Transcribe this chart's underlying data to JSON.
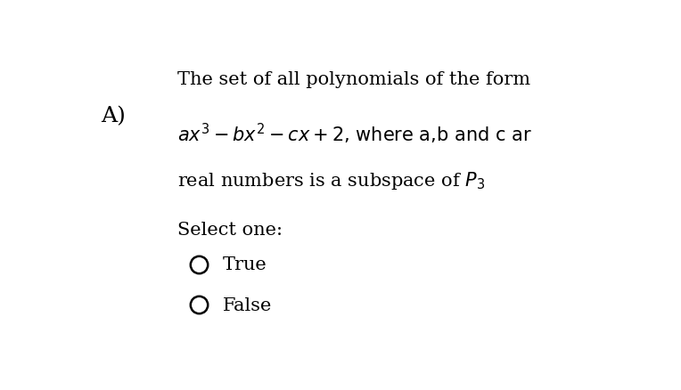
{
  "background_color": "#ffffff",
  "label_A": "A)",
  "line1": "The set of all polynomials of the form",
  "line3": "real numbers is a subspace of $P_3$",
  "select_one": "Select one:",
  "option_true": "True",
  "option_false": "False",
  "font_size_main": 15,
  "font_size_label": 18,
  "font_size_options": 15,
  "text_color": "#000000",
  "circle_color": "#000000"
}
